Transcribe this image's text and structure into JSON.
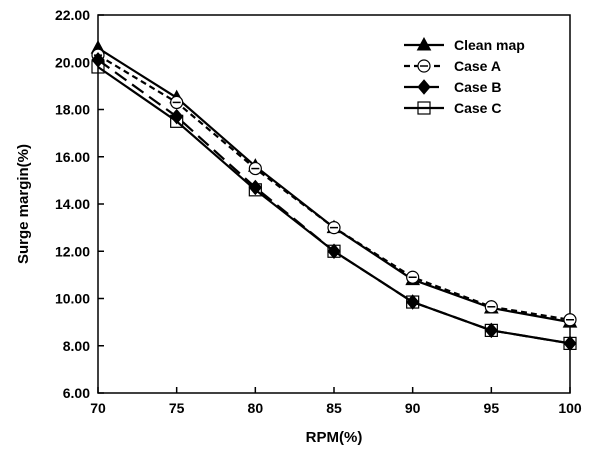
{
  "chart_data": {
    "type": "line",
    "xlabel": "RPM(%)",
    "ylabel": "Surge margin(%)",
    "x": [
      70,
      75,
      80,
      85,
      90,
      95,
      100
    ],
    "x_ticks": [
      "70",
      "75",
      "80",
      "85",
      "90",
      "95",
      "100"
    ],
    "y_ticks": [
      "6.00",
      "8.00",
      "10.00",
      "12.00",
      "14.00",
      "16.00",
      "18.00",
      "20.00",
      "22.00"
    ],
    "xlim": [
      70,
      100
    ],
    "ylim": [
      6,
      22
    ],
    "grid": false,
    "legend_position": "top-right",
    "series": [
      {
        "name": "Clean map",
        "marker": "filled-triangle",
        "line_style": "solid",
        "values": [
          20.6,
          18.5,
          15.6,
          13.0,
          10.8,
          9.6,
          9.0
        ]
      },
      {
        "name": "Case A",
        "marker": "open-circle-dash",
        "line_style": "dashed",
        "values": [
          20.3,
          18.3,
          15.5,
          13.0,
          10.9,
          9.65,
          9.1
        ]
      },
      {
        "name": "Case B",
        "marker": "filled-diamond",
        "line_style": "long-dash",
        "values": [
          20.1,
          17.7,
          14.7,
          12.0,
          9.85,
          8.65,
          8.1
        ]
      },
      {
        "name": "Case C",
        "marker": "open-square",
        "line_style": "solid",
        "values": [
          19.8,
          17.5,
          14.6,
          12.0,
          9.85,
          8.65,
          8.1
        ]
      }
    ]
  }
}
